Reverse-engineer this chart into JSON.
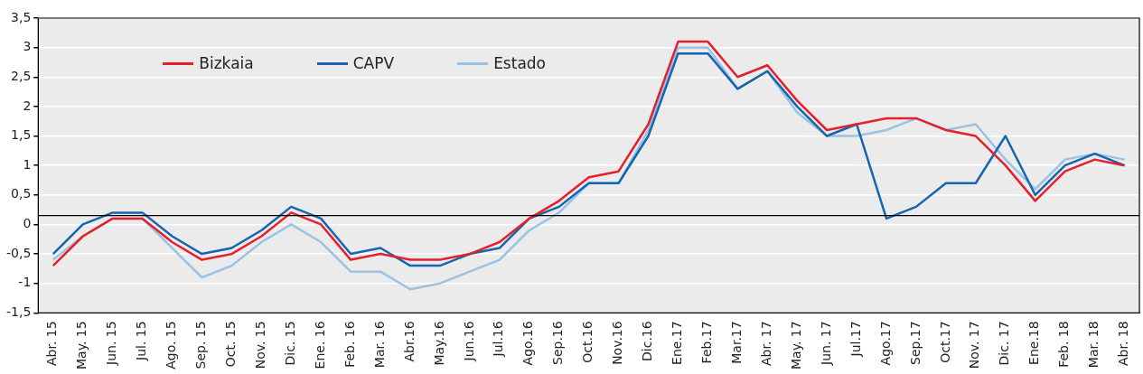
{
  "chart_data": {
    "type": "line",
    "categories": [
      "Abr. 15",
      "May. 15",
      "Jun. 15",
      "Jul. 15",
      "Ago. 15",
      "Sep. 15",
      "Oct. 15",
      "Nov. 15",
      "Dic. 15",
      "Ene. 16",
      "Feb. 16",
      "Mar. 16",
      "Abr.16",
      "May.16",
      "Jun.16",
      "Jul.16",
      "Ago.16",
      "Sep.16",
      "Oct.16",
      "Nov.16",
      "Dic.16",
      "Ene.17",
      "Feb.17",
      "Mar.17",
      "Abr. 17",
      "May. 17",
      "Jun. 17",
      "Jul.17",
      "Ago.17",
      "Sep.17",
      "Oct.17",
      "Nov. 17",
      "Dic. 17",
      "Ene.18",
      "Feb. 18",
      "Mar. 18",
      "Abr. 18"
    ],
    "series": [
      {
        "name": "Bizkaia",
        "color": "#e3202b",
        "values": [
          -0.7,
          -0.2,
          0.1,
          0.1,
          -0.3,
          -0.6,
          -0.5,
          -0.2,
          0.2,
          0,
          -0.6,
          -0.5,
          -0.6,
          -0.6,
          -0.5,
          -0.3,
          0.1,
          0.4,
          0.8,
          0.9,
          1.7,
          3.1,
          3.1,
          2.5,
          2.7,
          2.1,
          1.6,
          1.7,
          1.8,
          1.8,
          1.6,
          1.5,
          1.0,
          0.4,
          0.9,
          1.1,
          1.0
        ]
      },
      {
        "name": "CAPV",
        "color": "#1565b0",
        "values": [
          -0.5,
          0,
          0.2,
          0.2,
          -0.2,
          -0.5,
          -0.4,
          -0.1,
          0.3,
          0.1,
          -0.5,
          -0.4,
          -0.7,
          -0.7,
          -0.5,
          -0.4,
          0.1,
          0.3,
          0.7,
          0.7,
          1.5,
          2.9,
          2.9,
          2.3,
          2.6,
          2.0,
          1.5,
          1.7,
          0.1,
          0.3,
          0.7,
          0.7,
          1.5,
          0.5,
          1.0,
          1.2,
          1.0
        ]
      },
      {
        "name": "Estado",
        "color": "#9bc2e3",
        "values": [
          -0.6,
          -0.2,
          0.1,
          0.1,
          -0.4,
          -0.9,
          -0.7,
          -0.3,
          0,
          -0.3,
          -0.8,
          -0.8,
          -1.1,
          -1.0,
          -0.8,
          -0.6,
          -0.1,
          0.2,
          0.7,
          0.7,
          1.6,
          3.0,
          3.0,
          2.3,
          2.6,
          1.9,
          1.5,
          1.5,
          1.6,
          1.8,
          1.6,
          1.7,
          1.1,
          0.6,
          1.1,
          1.2,
          1.1
        ]
      }
    ],
    "ylim": [
      -1.5,
      3.5
    ],
    "yticks": [
      {
        "value": -1.5,
        "label": "-1,5"
      },
      -1,
      {
        "value": -0.5,
        "label": "-0,5"
      },
      0,
      {
        "value": 0.5,
        "label": "0,5"
      },
      1,
      {
        "value": 1.5,
        "label": "1,5"
      },
      2,
      {
        "value": 2.5,
        "label": "2,5"
      },
      3,
      {
        "value": 3.5,
        "label": "3,5"
      }
    ],
    "ref_lines": [
      {
        "axis": "y",
        "value": 0.15,
        "color": "#000000"
      }
    ],
    "grid": "y",
    "legend": "top left",
    "marker": "none",
    "line_style": "solid"
  }
}
